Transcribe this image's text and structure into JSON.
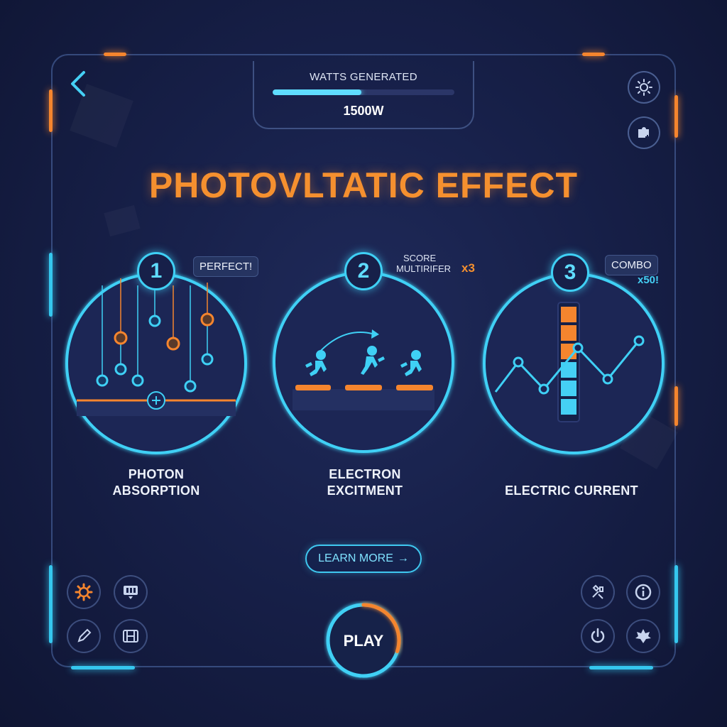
{
  "hud": {
    "watts_label": "WATTS GENERATED",
    "watts_value": "1500W",
    "watts_progress": 0.49
  },
  "title": "PHOTOVLTATIC EFFECT",
  "stages": [
    {
      "number": "1",
      "tag": "PERFECT!",
      "label_line1": "PHOTON",
      "label_line2": "ABSORPTION"
    },
    {
      "number": "2",
      "tag_line1": "SCORE",
      "tag_line2": "MULTIRIFER",
      "multiplier": "x3",
      "label_line1": "ELECTRON",
      "label_line2": "EXCITMENT"
    },
    {
      "number": "3",
      "tag": "COMBO",
      "combo_count": "x50!",
      "label_line1": "ELECTRIC CURRENT"
    }
  ],
  "learn_more": {
    "label": "LEARN MORE",
    "arrow": "→"
  },
  "play": {
    "label": "PLAY",
    "progress": 0.3
  },
  "icons": {
    "top_right": [
      "sun-settings-icon",
      "puzzle-add-icon"
    ],
    "bottom_left": [
      "gear-icon",
      "screen-icon",
      "pencil-icon",
      "film-icon"
    ],
    "bottom_right": [
      "tools-icon",
      "info-icon",
      "power-icon",
      "leaf-icon"
    ]
  },
  "colors": {
    "accent_orange": "#f5852e",
    "accent_cyan": "#3fd0f5",
    "background": "#172049"
  }
}
